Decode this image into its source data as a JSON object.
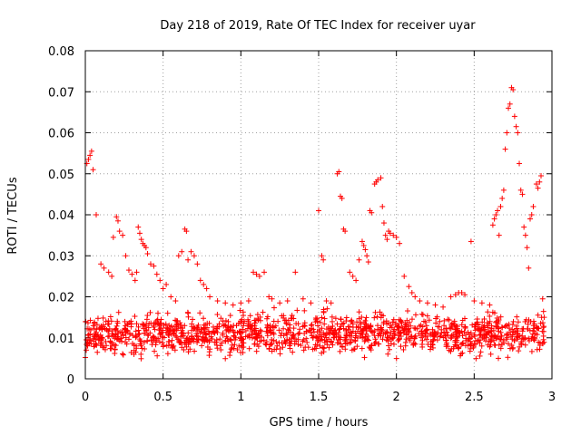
{
  "chart_data": {
    "type": "scatter",
    "title": "Day 218 of 2019, Rate Of TEC Index for receiver uyar",
    "xlabel": "GPS time / hours",
    "ylabel": "ROTI / TECUs",
    "xlim": [
      0,
      3
    ],
    "ylim": [
      0,
      0.08
    ],
    "grid": true,
    "x_ticks": [
      {
        "value": 0,
        "label": "0"
      },
      {
        "value": 0.5,
        "label": "0.5"
      },
      {
        "value": 1,
        "label": "1"
      },
      {
        "value": 1.5,
        "label": "1.5"
      },
      {
        "value": 2,
        "label": "2"
      },
      {
        "value": 2.5,
        "label": "2.5"
      },
      {
        "value": 3,
        "label": "3"
      }
    ],
    "y_ticks": [
      {
        "value": 0,
        "label": "0"
      },
      {
        "value": 0.01,
        "label": "0.01"
      },
      {
        "value": 0.02,
        "label": "0.02"
      },
      {
        "value": 0.03,
        "label": "0.03"
      },
      {
        "value": 0.04,
        "label": "0.04"
      },
      {
        "value": 0.05,
        "label": "0.05"
      },
      {
        "value": 0.06,
        "label": "0.06"
      },
      {
        "value": 0.07,
        "label": "0.07"
      },
      {
        "value": 0.08,
        "label": "0.08"
      }
    ],
    "marker": "+",
    "color": "#ff0000",
    "series": [
      {
        "name": "ROTI",
        "points": [
          [
            0.0,
            0.0052
          ],
          [
            0.01,
            0.0525
          ],
          [
            0.02,
            0.0535
          ],
          [
            0.03,
            0.0545
          ],
          [
            0.04,
            0.0555
          ],
          [
            0.05,
            0.051
          ],
          [
            0.07,
            0.04
          ],
          [
            0.1,
            0.028
          ],
          [
            0.12,
            0.027
          ],
          [
            0.15,
            0.026
          ],
          [
            0.17,
            0.025
          ],
          [
            0.18,
            0.0345
          ],
          [
            0.2,
            0.0395
          ],
          [
            0.21,
            0.0385
          ],
          [
            0.22,
            0.036
          ],
          [
            0.24,
            0.035
          ],
          [
            0.26,
            0.03
          ],
          [
            0.28,
            0.0265
          ],
          [
            0.3,
            0.0255
          ],
          [
            0.32,
            0.024
          ],
          [
            0.33,
            0.026
          ],
          [
            0.34,
            0.037
          ],
          [
            0.35,
            0.0355
          ],
          [
            0.36,
            0.034
          ],
          [
            0.37,
            0.033
          ],
          [
            0.38,
            0.0325
          ],
          [
            0.39,
            0.032
          ],
          [
            0.4,
            0.0305
          ],
          [
            0.42,
            0.028
          ],
          [
            0.44,
            0.0275
          ],
          [
            0.46,
            0.0255
          ],
          [
            0.48,
            0.024
          ],
          [
            0.5,
            0.022
          ],
          [
            0.52,
            0.023
          ],
          [
            0.55,
            0.02
          ],
          [
            0.58,
            0.019
          ],
          [
            0.6,
            0.03
          ],
          [
            0.62,
            0.031
          ],
          [
            0.64,
            0.0365
          ],
          [
            0.65,
            0.036
          ],
          [
            0.66,
            0.029
          ],
          [
            0.68,
            0.031
          ],
          [
            0.7,
            0.03
          ],
          [
            0.72,
            0.028
          ],
          [
            0.74,
            0.024
          ],
          [
            0.76,
            0.023
          ],
          [
            0.78,
            0.022
          ],
          [
            0.8,
            0.02
          ],
          [
            0.85,
            0.019
          ],
          [
            0.9,
            0.0185
          ],
          [
            0.95,
            0.018
          ],
          [
            1.0,
            0.0185
          ],
          [
            1.05,
            0.019
          ],
          [
            1.08,
            0.026
          ],
          [
            1.1,
            0.0255
          ],
          [
            1.12,
            0.025
          ],
          [
            1.15,
            0.026
          ],
          [
            1.18,
            0.02
          ],
          [
            1.2,
            0.0195
          ],
          [
            1.25,
            0.0185
          ],
          [
            1.3,
            0.019
          ],
          [
            1.35,
            0.026
          ],
          [
            1.4,
            0.0195
          ],
          [
            1.45,
            0.0185
          ],
          [
            1.5,
            0.041
          ],
          [
            1.52,
            0.03
          ],
          [
            1.53,
            0.029
          ],
          [
            1.55,
            0.019
          ],
          [
            1.58,
            0.0185
          ],
          [
            1.62,
            0.05
          ],
          [
            1.63,
            0.0505
          ],
          [
            1.64,
            0.0445
          ],
          [
            1.65,
            0.044
          ],
          [
            1.66,
            0.0365
          ],
          [
            1.67,
            0.036
          ],
          [
            1.7,
            0.026
          ],
          [
            1.72,
            0.025
          ],
          [
            1.74,
            0.024
          ],
          [
            1.76,
            0.029
          ],
          [
            1.78,
            0.0335
          ],
          [
            1.79,
            0.0325
          ],
          [
            1.8,
            0.0315
          ],
          [
            1.81,
            0.03
          ],
          [
            1.82,
            0.0285
          ],
          [
            1.83,
            0.041
          ],
          [
            1.84,
            0.0405
          ],
          [
            1.86,
            0.0475
          ],
          [
            1.87,
            0.048
          ],
          [
            1.88,
            0.0485
          ],
          [
            1.9,
            0.049
          ],
          [
            1.91,
            0.042
          ],
          [
            1.92,
            0.038
          ],
          [
            1.93,
            0.035
          ],
          [
            1.94,
            0.034
          ],
          [
            1.95,
            0.036
          ],
          [
            1.96,
            0.0355
          ],
          [
            1.98,
            0.035
          ],
          [
            2.0,
            0.0345
          ],
          [
            2.02,
            0.033
          ],
          [
            2.05,
            0.025
          ],
          [
            2.08,
            0.0225
          ],
          [
            2.1,
            0.021
          ],
          [
            2.12,
            0.02
          ],
          [
            2.15,
            0.019
          ],
          [
            2.2,
            0.0185
          ],
          [
            2.25,
            0.018
          ],
          [
            2.3,
            0.0175
          ],
          [
            2.35,
            0.02
          ],
          [
            2.38,
            0.0205
          ],
          [
            2.4,
            0.021
          ],
          [
            2.42,
            0.021
          ],
          [
            2.44,
            0.0205
          ],
          [
            2.48,
            0.0335
          ],
          [
            2.5,
            0.019
          ],
          [
            2.55,
            0.0185
          ],
          [
            2.6,
            0.018
          ],
          [
            2.62,
            0.0375
          ],
          [
            2.63,
            0.039
          ],
          [
            2.64,
            0.04
          ],
          [
            2.65,
            0.041
          ],
          [
            2.66,
            0.035
          ],
          [
            2.67,
            0.042
          ],
          [
            2.68,
            0.044
          ],
          [
            2.69,
            0.046
          ],
          [
            2.7,
            0.056
          ],
          [
            2.71,
            0.06
          ],
          [
            2.72,
            0.066
          ],
          [
            2.73,
            0.067
          ],
          [
            2.74,
            0.071
          ],
          [
            2.75,
            0.0705
          ],
          [
            2.76,
            0.064
          ],
          [
            2.77,
            0.0615
          ],
          [
            2.78,
            0.06
          ],
          [
            2.79,
            0.0525
          ],
          [
            2.8,
            0.046
          ],
          [
            2.81,
            0.045
          ],
          [
            2.82,
            0.037
          ],
          [
            2.83,
            0.035
          ],
          [
            2.84,
            0.032
          ],
          [
            2.85,
            0.027
          ],
          [
            2.86,
            0.039
          ],
          [
            2.87,
            0.04
          ],
          [
            2.88,
            0.042
          ],
          [
            2.9,
            0.0475
          ],
          [
            2.91,
            0.0465
          ],
          [
            2.92,
            0.048
          ],
          [
            2.93,
            0.0495
          ],
          [
            2.94,
            0.0195
          ],
          [
            2.95,
            0.015
          ]
        ]
      }
    ],
    "noise_band": {
      "description": "dense cluster of points between roughly 0.004 and 0.018 TECUs across the full time range",
      "x_range": [
        0,
        2.95
      ],
      "y_range": [
        0.004,
        0.018
      ],
      "count": 1400
    }
  }
}
